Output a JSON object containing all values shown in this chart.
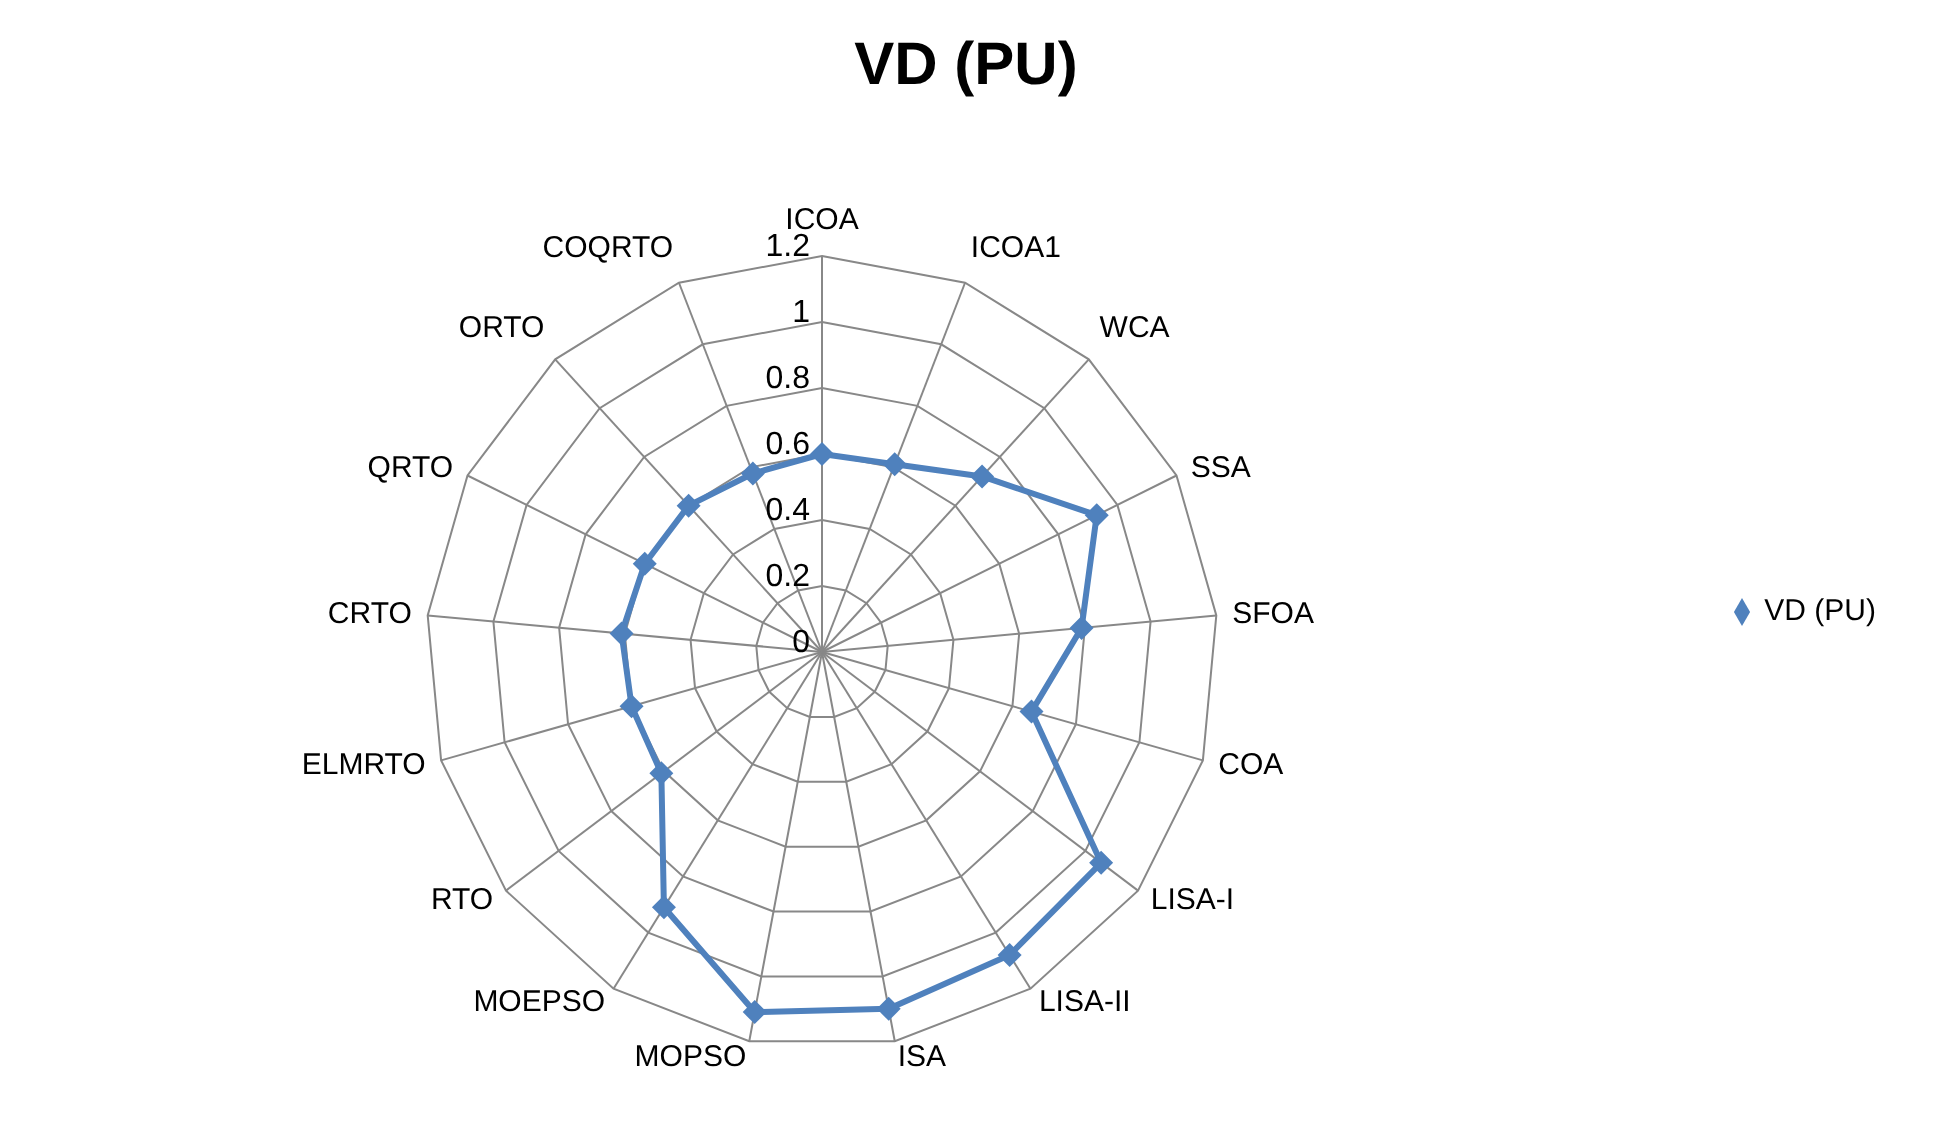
{
  "chart_data": {
    "type": "radar",
    "title": "VD (PU)",
    "categories": [
      "ICOA",
      "ICOA1",
      "WCA",
      "SSA",
      "SFOA",
      "COA",
      "LISA-I",
      "LISA-II",
      "ISA",
      "MOPSO",
      "MOEPSO",
      "RTO",
      "ELMRTO",
      "CRTO",
      "QRTO",
      "ORTO",
      "COQRTO"
    ],
    "series": [
      {
        "name": "VD (PU)",
        "color": "#4f81bd",
        "values": [
          0.6,
          0.61,
          0.72,
          0.93,
          0.79,
          0.66,
          1.06,
          1.08,
          1.1,
          1.11,
          0.91,
          0.61,
          0.6,
          0.61,
          0.6,
          0.6,
          0.58
        ]
      }
    ],
    "ylim": [
      0,
      1.2
    ],
    "yticks": [
      0,
      0.2,
      0.4,
      0.6,
      0.8,
      1,
      1.2
    ],
    "grid": true,
    "legend": "right",
    "marker": "diamond",
    "line_style": "solid"
  }
}
